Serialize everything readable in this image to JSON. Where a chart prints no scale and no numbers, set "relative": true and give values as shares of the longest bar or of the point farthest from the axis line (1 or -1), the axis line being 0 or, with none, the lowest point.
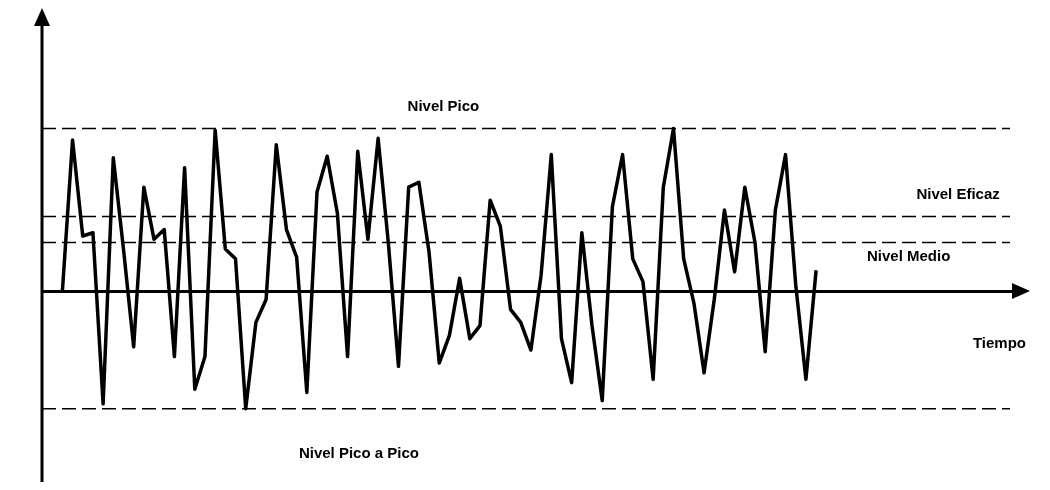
{
  "chart_data": {
    "type": "line",
    "relative": true,
    "xlabel": "Tiempo",
    "tick_labels": false,
    "marker": "none",
    "color": "#000000",
    "categories": [
      null,
      null,
      null,
      null,
      null,
      null,
      null,
      null,
      null,
      null,
      null,
      null,
      null,
      null,
      null,
      null,
      null,
      null,
      null,
      null,
      null,
      null,
      null,
      null,
      null,
      null,
      null,
      null,
      null,
      null,
      null,
      null,
      null,
      null,
      null,
      null,
      null,
      null,
      null,
      null,
      null,
      null,
      null,
      null,
      null,
      null,
      null,
      null,
      null,
      null,
      null,
      null,
      null,
      null,
      null,
      null,
      null,
      null,
      null,
      null,
      null,
      null,
      null,
      null,
      null,
      null,
      null,
      null,
      null,
      null,
      null,
      null,
      null,
      null,
      null,
      null,
      null,
      null,
      null,
      null,
      null,
      null,
      null,
      null,
      null,
      null,
      null,
      null,
      null,
      null,
      null,
      null,
      null,
      null,
      null,
      null,
      null,
      null
    ],
    "values": [
      null,
      null,
      0,
      0.93,
      0.34,
      0.36,
      -0.69,
      0.82,
      0.26,
      -0.34,
      0.64,
      0.32,
      0.38,
      -0.4,
      0.76,
      -0.6,
      -0.4,
      0.99,
      0.26,
      0.2,
      -0.72,
      -0.19,
      -0.05,
      0.9,
      0.38,
      0.21,
      -0.62,
      0.61,
      0.83,
      0.48,
      -0.4,
      0.86,
      0.32,
      0.94,
      0.3,
      -0.46,
      0.64,
      0.67,
      0.24,
      -0.44,
      -0.27,
      0.08,
      -0.29,
      -0.21,
      0.56,
      0.4,
      -0.11,
      -0.19,
      -0.36,
      0.1,
      0.84,
      -0.29,
      -0.56,
      0.36,
      -0.21,
      -0.67,
      0.52,
      0.84,
      0.2,
      0.06,
      -0.54,
      0.64,
      1.0,
      0.2,
      -0.07,
      -0.5,
      -0.05,
      0.5,
      0.12,
      0.64,
      0.3,
      -0.37,
      0.5,
      0.84,
      0.04,
      -0.54,
      0.13,
      null,
      null,
      null,
      null,
      null,
      null,
      null,
      null,
      null,
      null,
      null,
      null,
      null,
      null,
      null,
      null,
      null,
      null,
      null,
      null,
      null
    ],
    "ref_lines": [
      {
        "axis": "y",
        "value": 1.0,
        "label": "Nivel Pico",
        "line_style": "dashed"
      },
      {
        "axis": "y",
        "value": 0.3,
        "label": "Nivel Medio",
        "line_style": "dashed"
      },
      {
        "axis": "y",
        "value": 0.46,
        "label": "Nivel Eficaz",
        "line_style": "dashed"
      },
      {
        "axis": "y",
        "value": -0.72,
        "label": "Nivel Pico a Pico",
        "line_style": "dashed"
      }
    ]
  }
}
